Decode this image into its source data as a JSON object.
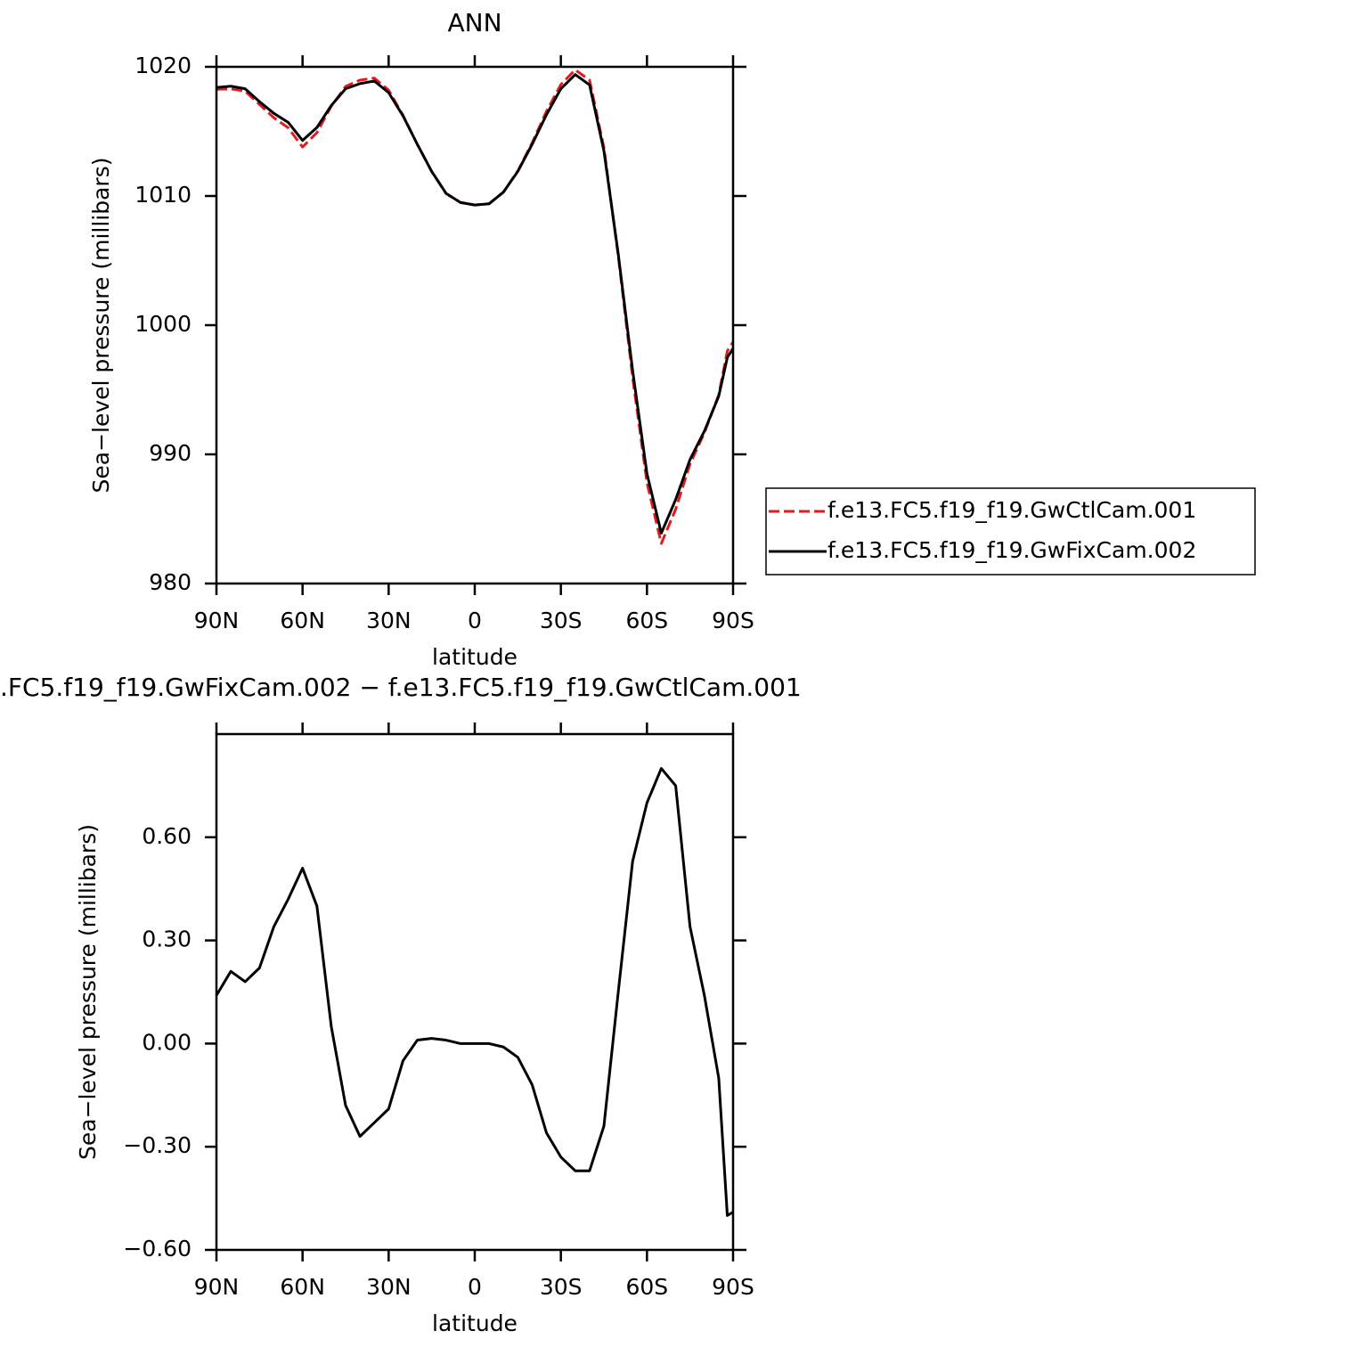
{
  "chart_data": [
    {
      "type": "line",
      "title": "ANN",
      "x_label": "latitude",
      "y_label": "Sea−level pressure (millibars)",
      "x": [
        90,
        85,
        80,
        75,
        70,
        65,
        60,
        55,
        50,
        45,
        40,
        35,
        30,
        25,
        20,
        15,
        10,
        5,
        0,
        -5,
        -10,
        -15,
        -20,
        -25,
        -30,
        -35,
        -40,
        -45,
        -50,
        -55,
        -60,
        -65,
        -70,
        -75,
        -80,
        -85,
        -88,
        -90
      ],
      "series": [
        {
          "name": "f.e13.FC5.f19_f19.GwCtlCam.001",
          "color": "#e41a1c",
          "dash": true,
          "values": [
            1018.26,
            1018.29,
            1018.12,
            1017.08,
            1016.06,
            1015.28,
            1013.79,
            1014.9,
            1016.95,
            1018.48,
            1018.97,
            1019.13,
            1018.19,
            1016.25,
            1013.99,
            1011.89,
            1010.19,
            1009.5,
            1009.3,
            1009.4,
            1010.31,
            1011.94,
            1014.12,
            1016.56,
            1018.63,
            1019.77,
            1018.97,
            1013.74,
            1005.35,
            995.97,
            987.8,
            983.1,
            985.75,
            989.25,
            991.66,
            994.6,
            998.0,
            998.69
          ]
        },
        {
          "name": "f.e13.FC5.f19_f19.GwFixCam.002",
          "color": "#000000",
          "dash": false,
          "values": [
            1018.4,
            1018.5,
            1018.3,
            1017.3,
            1016.4,
            1015.7,
            1014.3,
            1015.3,
            1017.0,
            1018.3,
            1018.7,
            1018.9,
            1018.0,
            1016.2,
            1014.0,
            1011.9,
            1010.2,
            1009.5,
            1009.3,
            1009.4,
            1010.3,
            1011.9,
            1014.0,
            1016.3,
            1018.3,
            1019.4,
            1018.6,
            1013.5,
            1005.5,
            996.5,
            988.5,
            983.9,
            986.5,
            989.6,
            991.8,
            994.5,
            997.5,
            998.2
          ]
        }
      ],
      "xlim": [
        90,
        -90
      ],
      "xticks": [
        {
          "value": 90,
          "label": "90N"
        },
        {
          "value": 60,
          "label": "60N"
        },
        {
          "value": 30,
          "label": "30N"
        },
        0,
        {
          "value": -30,
          "label": "30S"
        },
        {
          "value": -60,
          "label": "60S"
        },
        {
          "value": -90,
          "label": "90S"
        }
      ],
      "ylim": [
        980,
        1020
      ],
      "yticks": [
        980,
        990,
        1000,
        1010,
        1020
      ],
      "legend": "right"
    },
    {
      "type": "line",
      "title": ".FC5.f19_f19.GwFixCam.002 − f.e13.FC5.f19_f19.GwCtlCam.001",
      "x_label": "latitude",
      "y_label": "Sea−level pressure (millibars)",
      "x": [
        90,
        85,
        80,
        75,
        70,
        65,
        60,
        55,
        50,
        45,
        40,
        35,
        30,
        25,
        20,
        15,
        10,
        5,
        0,
        -5,
        -10,
        -15,
        -20,
        -25,
        -30,
        -35,
        -40,
        -45,
        -50,
        -55,
        -60,
        -65,
        -70,
        -75,
        -80,
        -85,
        -88,
        -90
      ],
      "series": [
        {
          "color": "#000000",
          "dash": false,
          "values": [
            0.14,
            0.21,
            0.18,
            0.22,
            0.34,
            0.42,
            0.51,
            0.4,
            0.05,
            -0.18,
            -0.27,
            -0.23,
            -0.19,
            -0.05,
            0.01,
            0.015,
            0.01,
            0.0,
            0.0,
            0.0,
            -0.01,
            -0.04,
            -0.12,
            -0.26,
            -0.33,
            -0.37,
            -0.37,
            -0.24,
            0.15,
            0.53,
            0.7,
            0.8,
            0.75,
            0.34,
            0.14,
            -0.1,
            -0.5,
            -0.49
          ]
        }
      ],
      "xlim": [
        90,
        -90
      ],
      "xticks": [
        {
          "value": 90,
          "label": "90N"
        },
        {
          "value": 60,
          "label": "60N"
        },
        {
          "value": 30,
          "label": "30N"
        },
        0,
        {
          "value": -30,
          "label": "30S"
        },
        {
          "value": -60,
          "label": "60S"
        },
        {
          "value": -90,
          "label": "90S"
        }
      ],
      "ylim": [
        -0.6,
        0.9
      ],
      "yticks": [
        {
          "value": -0.6,
          "label": "−0.60"
        },
        {
          "value": -0.3,
          "label": "−0.30"
        },
        {
          "value": 0,
          "label": "0.00"
        },
        {
          "value": 0.3,
          "label": "0.30"
        },
        {
          "value": 0.6,
          "label": "0.60"
        }
      ]
    }
  ]
}
